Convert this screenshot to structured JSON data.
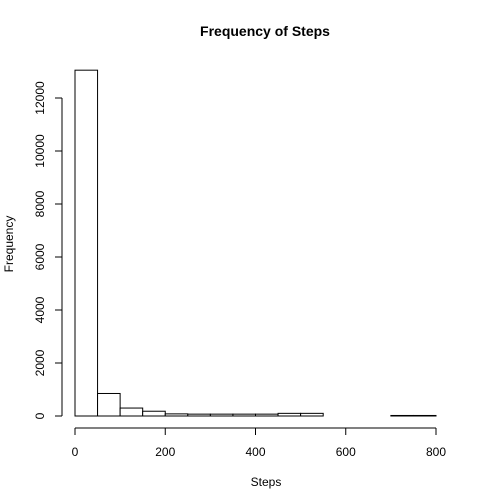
{
  "chart_data": {
    "type": "bar",
    "title": "Frequency of Steps",
    "xlabel": "Steps",
    "ylabel": "Frequency",
    "xlim": [
      0,
      850
    ],
    "ylim": [
      0,
      13000
    ],
    "x_ticks": [
      0,
      200,
      400,
      600,
      800
    ],
    "y_ticks": [
      0,
      2000,
      4000,
      6000,
      8000,
      10000,
      12000
    ],
    "bin_edges": [
      0,
      50,
      100,
      150,
      200,
      250,
      300,
      350,
      400,
      450,
      500,
      550,
      600,
      650,
      700,
      750,
      800
    ],
    "values": [
      13050,
      850,
      300,
      180,
      80,
      70,
      70,
      70,
      70,
      100,
      100,
      0,
      0,
      0,
      20,
      20
    ],
    "grid": false,
    "legend": "none"
  }
}
